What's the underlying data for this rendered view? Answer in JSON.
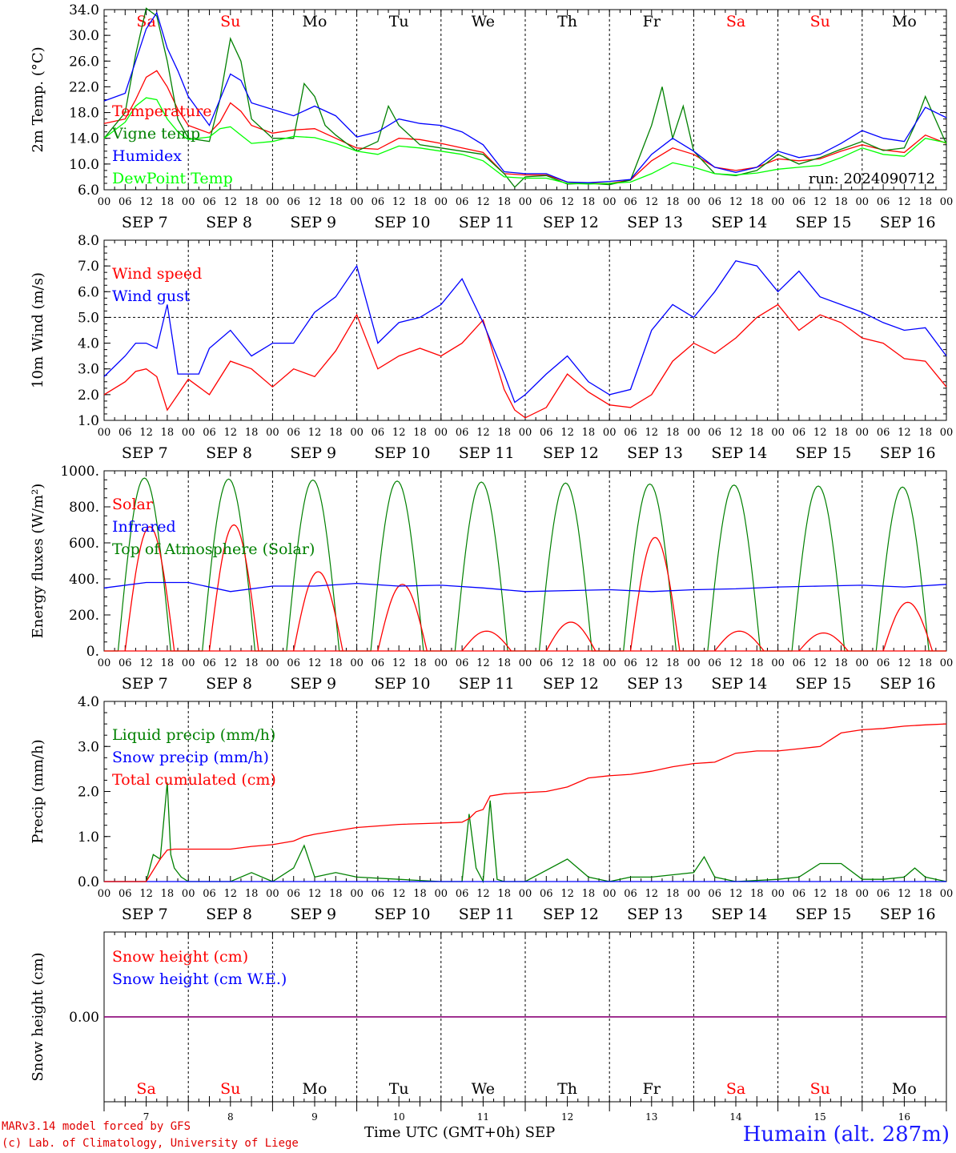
{
  "station": "Humain (alt. 287m)",
  "credits": [
    "MARv3.14 model forced by GFS",
    "(c) Lab. of Climatology, University of Liege"
  ],
  "time_axis_label": "Time UTC (GMT+0h)",
  "month_label": "SEP",
  "run_label": "run: 2024090712",
  "days": [
    {
      "dow": "Sa",
      "date": "SEP  7",
      "num": "7",
      "weekend": true
    },
    {
      "dow": "Su",
      "date": "SEP  8",
      "num": "8",
      "weekend": true
    },
    {
      "dow": "Mo",
      "date": "SEP  9",
      "num": "9",
      "weekend": false
    },
    {
      "dow": "Tu",
      "date": "SEP 10",
      "num": "10",
      "weekend": false
    },
    {
      "dow": "We",
      "date": "SEP 11",
      "num": "11",
      "weekend": false
    },
    {
      "dow": "Th",
      "date": "SEP 12",
      "num": "12",
      "weekend": false
    },
    {
      "dow": "Fr",
      "date": "SEP 13",
      "num": "13",
      "weekend": false
    },
    {
      "dow": "Sa",
      "date": "SEP 14",
      "num": "14",
      "weekend": true
    },
    {
      "dow": "Su",
      "date": "SEP 15",
      "num": "15",
      "weekend": true
    },
    {
      "dow": "Mo",
      "date": "SEP 16",
      "num": "16",
      "weekend": false
    }
  ],
  "hour_ticks": [
    "00",
    "06",
    "12",
    "18"
  ],
  "colors": {
    "red": "#ff0000",
    "green": "#008000",
    "blue": "#0000ff",
    "lime": "#00ff00",
    "purple": "#800080",
    "weekend": "#ff0000"
  },
  "chart_data": [
    {
      "type": "line",
      "ylabel": "2m Temp. (°C)",
      "ylim": [
        6,
        34
      ],
      "yticks": [
        "6.0",
        "10.0",
        "14.0",
        "18.0",
        "22.0",
        "26.0",
        "30.0",
        "34.0"
      ],
      "x_unit": "hours since SEP 7 00 UTC",
      "series": [
        {
          "name": "Temperature",
          "color": "#ff0000",
          "x": [
            0,
            6,
            9,
            12,
            15,
            18,
            21,
            24,
            30,
            33,
            36,
            39,
            42,
            48,
            54,
            60,
            66,
            72,
            78,
            84,
            90,
            96,
            102,
            108,
            114,
            120,
            126,
            132,
            138,
            144,
            150,
            156,
            162,
            168,
            174,
            180,
            186,
            192,
            198,
            204,
            210,
            216,
            222,
            228,
            234,
            240
          ],
          "values": [
            16.3,
            17,
            20,
            23.5,
            24.5,
            22,
            18.5,
            16,
            14.8,
            16.5,
            19.5,
            18.2,
            16,
            14.8,
            15.3,
            15.5,
            14,
            12.5,
            12.3,
            14,
            13.8,
            13.2,
            12.5,
            11.8,
            8.5,
            8.3,
            8.3,
            7.2,
            7.0,
            7.0,
            7.5,
            10.5,
            12.5,
            11.5,
            9.5,
            9.0,
            9.5,
            10.8,
            10.5,
            10.8,
            12.0,
            13.0,
            12.2,
            11.8,
            14.5,
            13.2
          ]
        },
        {
          "name": "Vigne temp",
          "color": "#008000",
          "x": [
            0,
            6,
            9,
            12,
            15,
            18,
            21,
            24,
            30,
            33,
            36,
            39,
            42,
            48,
            54,
            57,
            60,
            63,
            66,
            72,
            78,
            81,
            84,
            90,
            96,
            102,
            108,
            114,
            117,
            120,
            126,
            132,
            138,
            144,
            150,
            156,
            159,
            162,
            165,
            168,
            174,
            180,
            186,
            192,
            198,
            204,
            210,
            216,
            222,
            228,
            231,
            234,
            240
          ],
          "values": [
            14,
            18,
            27,
            34.2,
            33,
            26,
            17,
            14,
            13.5,
            20,
            29.5,
            26,
            17,
            14,
            14,
            22.5,
            20.5,
            16,
            14.5,
            12,
            13.5,
            19,
            16,
            13,
            12.5,
            12,
            11.5,
            8.5,
            6.4,
            8,
            8.2,
            6.9,
            7.0,
            6.8,
            7.5,
            16,
            22,
            14,
            19,
            12,
            8.5,
            8.2,
            9,
            11.5,
            10,
            11,
            12.3,
            13.5,
            12.1,
            12.5,
            16,
            20.5,
            13.1
          ]
        },
        {
          "name": "Humidex",
          "color": "#0000ff",
          "x": [
            0,
            6,
            9,
            12,
            15,
            18,
            21,
            24,
            30,
            33,
            36,
            39,
            42,
            48,
            54,
            60,
            66,
            72,
            78,
            84,
            90,
            96,
            102,
            108,
            114,
            120,
            126,
            132,
            138,
            144,
            150,
            156,
            162,
            168,
            174,
            180,
            186,
            192,
            198,
            204,
            210,
            216,
            222,
            228,
            234,
            240
          ],
          "values": [
            19.8,
            21,
            26,
            31,
            33.5,
            28,
            24.5,
            20.5,
            16,
            20,
            24,
            23,
            19.5,
            18.5,
            17.5,
            19,
            17.5,
            14.2,
            15,
            17,
            16.3,
            16,
            15,
            13,
            8.8,
            8.5,
            8.5,
            7.2,
            7.1,
            7.3,
            7.6,
            11.5,
            14,
            12,
            9.5,
            8.7,
            9.5,
            12,
            11,
            11.5,
            13.2,
            15.2,
            14,
            13.5,
            18.8,
            17.2
          ]
        },
        {
          "name": "DewPoint Temp",
          "color": "#00ff00",
          "x": [
            0,
            6,
            9,
            12,
            15,
            18,
            21,
            24,
            30,
            33,
            36,
            39,
            42,
            48,
            54,
            60,
            66,
            72,
            78,
            84,
            90,
            96,
            102,
            108,
            114,
            120,
            126,
            132,
            138,
            144,
            150,
            156,
            162,
            168,
            174,
            180,
            186,
            192,
            198,
            204,
            210,
            216,
            222,
            228,
            234,
            240
          ],
          "values": [
            14,
            16.5,
            19,
            20.3,
            20,
            17,
            15,
            13.8,
            14.2,
            15.5,
            15.8,
            14.5,
            13.2,
            13.5,
            14.3,
            14.1,
            13.2,
            12,
            11.5,
            12.8,
            12.5,
            12,
            11.5,
            10.5,
            8,
            7.8,
            7.8,
            7.0,
            6.9,
            7.0,
            7.2,
            8.5,
            10.2,
            9.5,
            8.5,
            8.3,
            8.6,
            9.2,
            9.5,
            9.8,
            11,
            12.5,
            11.5,
            11.2,
            14,
            13.3
          ]
        }
      ],
      "annotations": []
    },
    {
      "type": "line",
      "ylabel": "10m Wind (m/s)",
      "ylim": [
        1,
        8
      ],
      "yticks": [
        "1.0",
        "2.0",
        "3.0",
        "4.0",
        "5.0",
        "6.0",
        "7.0",
        "8.0"
      ],
      "reference_line": 5.0,
      "series": [
        {
          "name": "Wind speed",
          "color": "#ff0000",
          "x": [
            0,
            6,
            9,
            12,
            15,
            18,
            21,
            24,
            27,
            30,
            36,
            42,
            48,
            54,
            60,
            66,
            72,
            78,
            84,
            90,
            96,
            102,
            108,
            114,
            117,
            120,
            126,
            132,
            138,
            144,
            150,
            156,
            162,
            168,
            174,
            180,
            186,
            192,
            198,
            204,
            210,
            216,
            222,
            228,
            234,
            240
          ],
          "values": [
            2.0,
            2.5,
            2.9,
            3.0,
            2.7,
            1.4,
            2.0,
            2.6,
            2.3,
            2.0,
            3.3,
            3.0,
            2.3,
            3.0,
            2.7,
            3.7,
            5.1,
            3.0,
            3.5,
            3.8,
            3.5,
            4.0,
            4.9,
            2.2,
            1.4,
            1.1,
            1.5,
            2.8,
            2.1,
            1.6,
            1.5,
            2.0,
            3.3,
            4.0,
            3.6,
            4.2,
            5.0,
            5.5,
            4.5,
            5.1,
            4.8,
            4.2,
            4.0,
            3.4,
            3.3,
            2.3
          ]
        },
        {
          "name": "Wind gust",
          "color": "#0000ff",
          "x": [
            0,
            6,
            9,
            12,
            15,
            18,
            21,
            24,
            27,
            30,
            36,
            42,
            48,
            54,
            60,
            66,
            72,
            75,
            78,
            84,
            90,
            96,
            102,
            108,
            114,
            117,
            120,
            126,
            132,
            138,
            144,
            150,
            156,
            162,
            168,
            174,
            180,
            186,
            192,
            198,
            204,
            210,
            216,
            222,
            228,
            234,
            240
          ],
          "values": [
            2.7,
            3.5,
            4.0,
            4.0,
            3.8,
            5.5,
            2.8,
            2.8,
            2.8,
            3.8,
            4.5,
            3.5,
            4.0,
            4.0,
            5.2,
            5.8,
            7.0,
            5.5,
            4.0,
            4.8,
            5.0,
            5.5,
            6.5,
            4.8,
            2.8,
            1.7,
            2.0,
            2.8,
            3.5,
            2.5,
            2.0,
            2.2,
            4.5,
            5.5,
            5.0,
            6.0,
            7.2,
            7.0,
            6.0,
            6.8,
            5.8,
            5.5,
            5.2,
            4.8,
            4.5,
            4.6,
            3.5
          ]
        }
      ],
      "annotations": []
    },
    {
      "type": "line",
      "ylabel": "Energy fluxes (W/m²)",
      "ylim": [
        0,
        1000
      ],
      "yticks": [
        "0.",
        "200.",
        "400.",
        "600.",
        "800.",
        "1000."
      ],
      "series": [
        {
          "name": "Solar",
          "color": "#ff0000",
          "peaks": [
            [
              13,
              690
            ],
            [
              37,
              700
            ],
            [
              61,
              440
            ],
            [
              85,
              370
            ],
            [
              109,
              110
            ],
            [
              133,
              160
            ],
            [
              157,
              630
            ],
            [
              181,
              110
            ],
            [
              205,
              100
            ],
            [
              229,
              270
            ]
          ]
        },
        {
          "name": "Infrared",
          "color": "#0000ff",
          "x": [
            0,
            12,
            24,
            36,
            48,
            60,
            72,
            84,
            96,
            108,
            120,
            132,
            144,
            156,
            168,
            180,
            192,
            204,
            216,
            228,
            240
          ],
          "values": [
            350,
            380,
            380,
            330,
            360,
            360,
            375,
            360,
            365,
            350,
            330,
            335,
            340,
            330,
            340,
            345,
            355,
            360,
            365,
            355,
            370
          ]
        },
        {
          "name": "Top of Atmosphere (Solar)",
          "color": "#008000",
          "peak": 960,
          "peak_end": 910
        }
      ],
      "annotations": []
    },
    {
      "type": "line",
      "ylabel": "Precip (mm/h)",
      "ylim": [
        0,
        4
      ],
      "yticks": [
        "0.0",
        "1.0",
        "2.0",
        "3.0",
        "4.0"
      ],
      "series": [
        {
          "name": "Liquid precip (mm/h)",
          "color": "#008000",
          "x": [
            0,
            12,
            14,
            16,
            18,
            19,
            20,
            22,
            24,
            36,
            42,
            48,
            54,
            57,
            60,
            66,
            72,
            84,
            96,
            102,
            104,
            106,
            108,
            110,
            112,
            114,
            120,
            132,
            135,
            138,
            144,
            150,
            156,
            168,
            171,
            174,
            180,
            192,
            198,
            204,
            210,
            216,
            222,
            228,
            231,
            234,
            240
          ],
          "values": [
            0,
            0,
            0.6,
            0.5,
            2.2,
            0.6,
            0.3,
            0.1,
            0,
            0,
            0.2,
            0,
            0.3,
            0.8,
            0.1,
            0.2,
            0.1,
            0.05,
            0,
            0,
            1.5,
            0.3,
            0,
            1.8,
            0.05,
            0,
            0,
            0.5,
            0.3,
            0.1,
            0,
            0.1,
            0.1,
            0.2,
            0.55,
            0.1,
            0,
            0.05,
            0.1,
            0.4,
            0.4,
            0.05,
            0.05,
            0.1,
            0.3,
            0.1,
            0
          ]
        },
        {
          "name": "Snow precip (mm/h)",
          "color": "#0000ff",
          "x": [
            0,
            240
          ],
          "values": [
            0,
            0
          ]
        },
        {
          "name": "Total cumulated (cm)",
          "color": "#ff0000",
          "x": [
            0,
            12,
            16,
            18,
            20,
            24,
            36,
            42,
            48,
            54,
            57,
            60,
            72,
            84,
            96,
            102,
            104,
            106,
            108,
            110,
            114,
            126,
            132,
            138,
            144,
            150,
            156,
            162,
            168,
            174,
            180,
            186,
            192,
            198,
            204,
            210,
            216,
            222,
            228,
            234,
            240
          ],
          "values": [
            0,
            0,
            0.5,
            0.7,
            0.72,
            0.72,
            0.72,
            0.78,
            0.82,
            0.9,
            1.0,
            1.05,
            1.2,
            1.27,
            1.3,
            1.32,
            1.4,
            1.55,
            1.6,
            1.9,
            1.95,
            2.0,
            2.1,
            2.3,
            2.35,
            2.38,
            2.45,
            2.55,
            2.62,
            2.65,
            2.85,
            2.9,
            2.9,
            2.95,
            3.0,
            3.3,
            3.37,
            3.4,
            3.45,
            3.48,
            3.5
          ]
        }
      ],
      "annotations": []
    },
    {
      "type": "line",
      "ylabel": "Snow height (cm)",
      "ylim": [
        -1,
        1
      ],
      "yticks": [
        "0.00"
      ],
      "series": [
        {
          "name": "Snow height (cm)",
          "color": "#ff0000",
          "x": [
            0,
            240
          ],
          "values": [
            0,
            0
          ]
        },
        {
          "name": "Snow height (cm W.E.)",
          "color": "#0000ff",
          "x": [
            0,
            240
          ],
          "values": [
            0,
            0
          ]
        }
      ],
      "annotations": []
    }
  ]
}
